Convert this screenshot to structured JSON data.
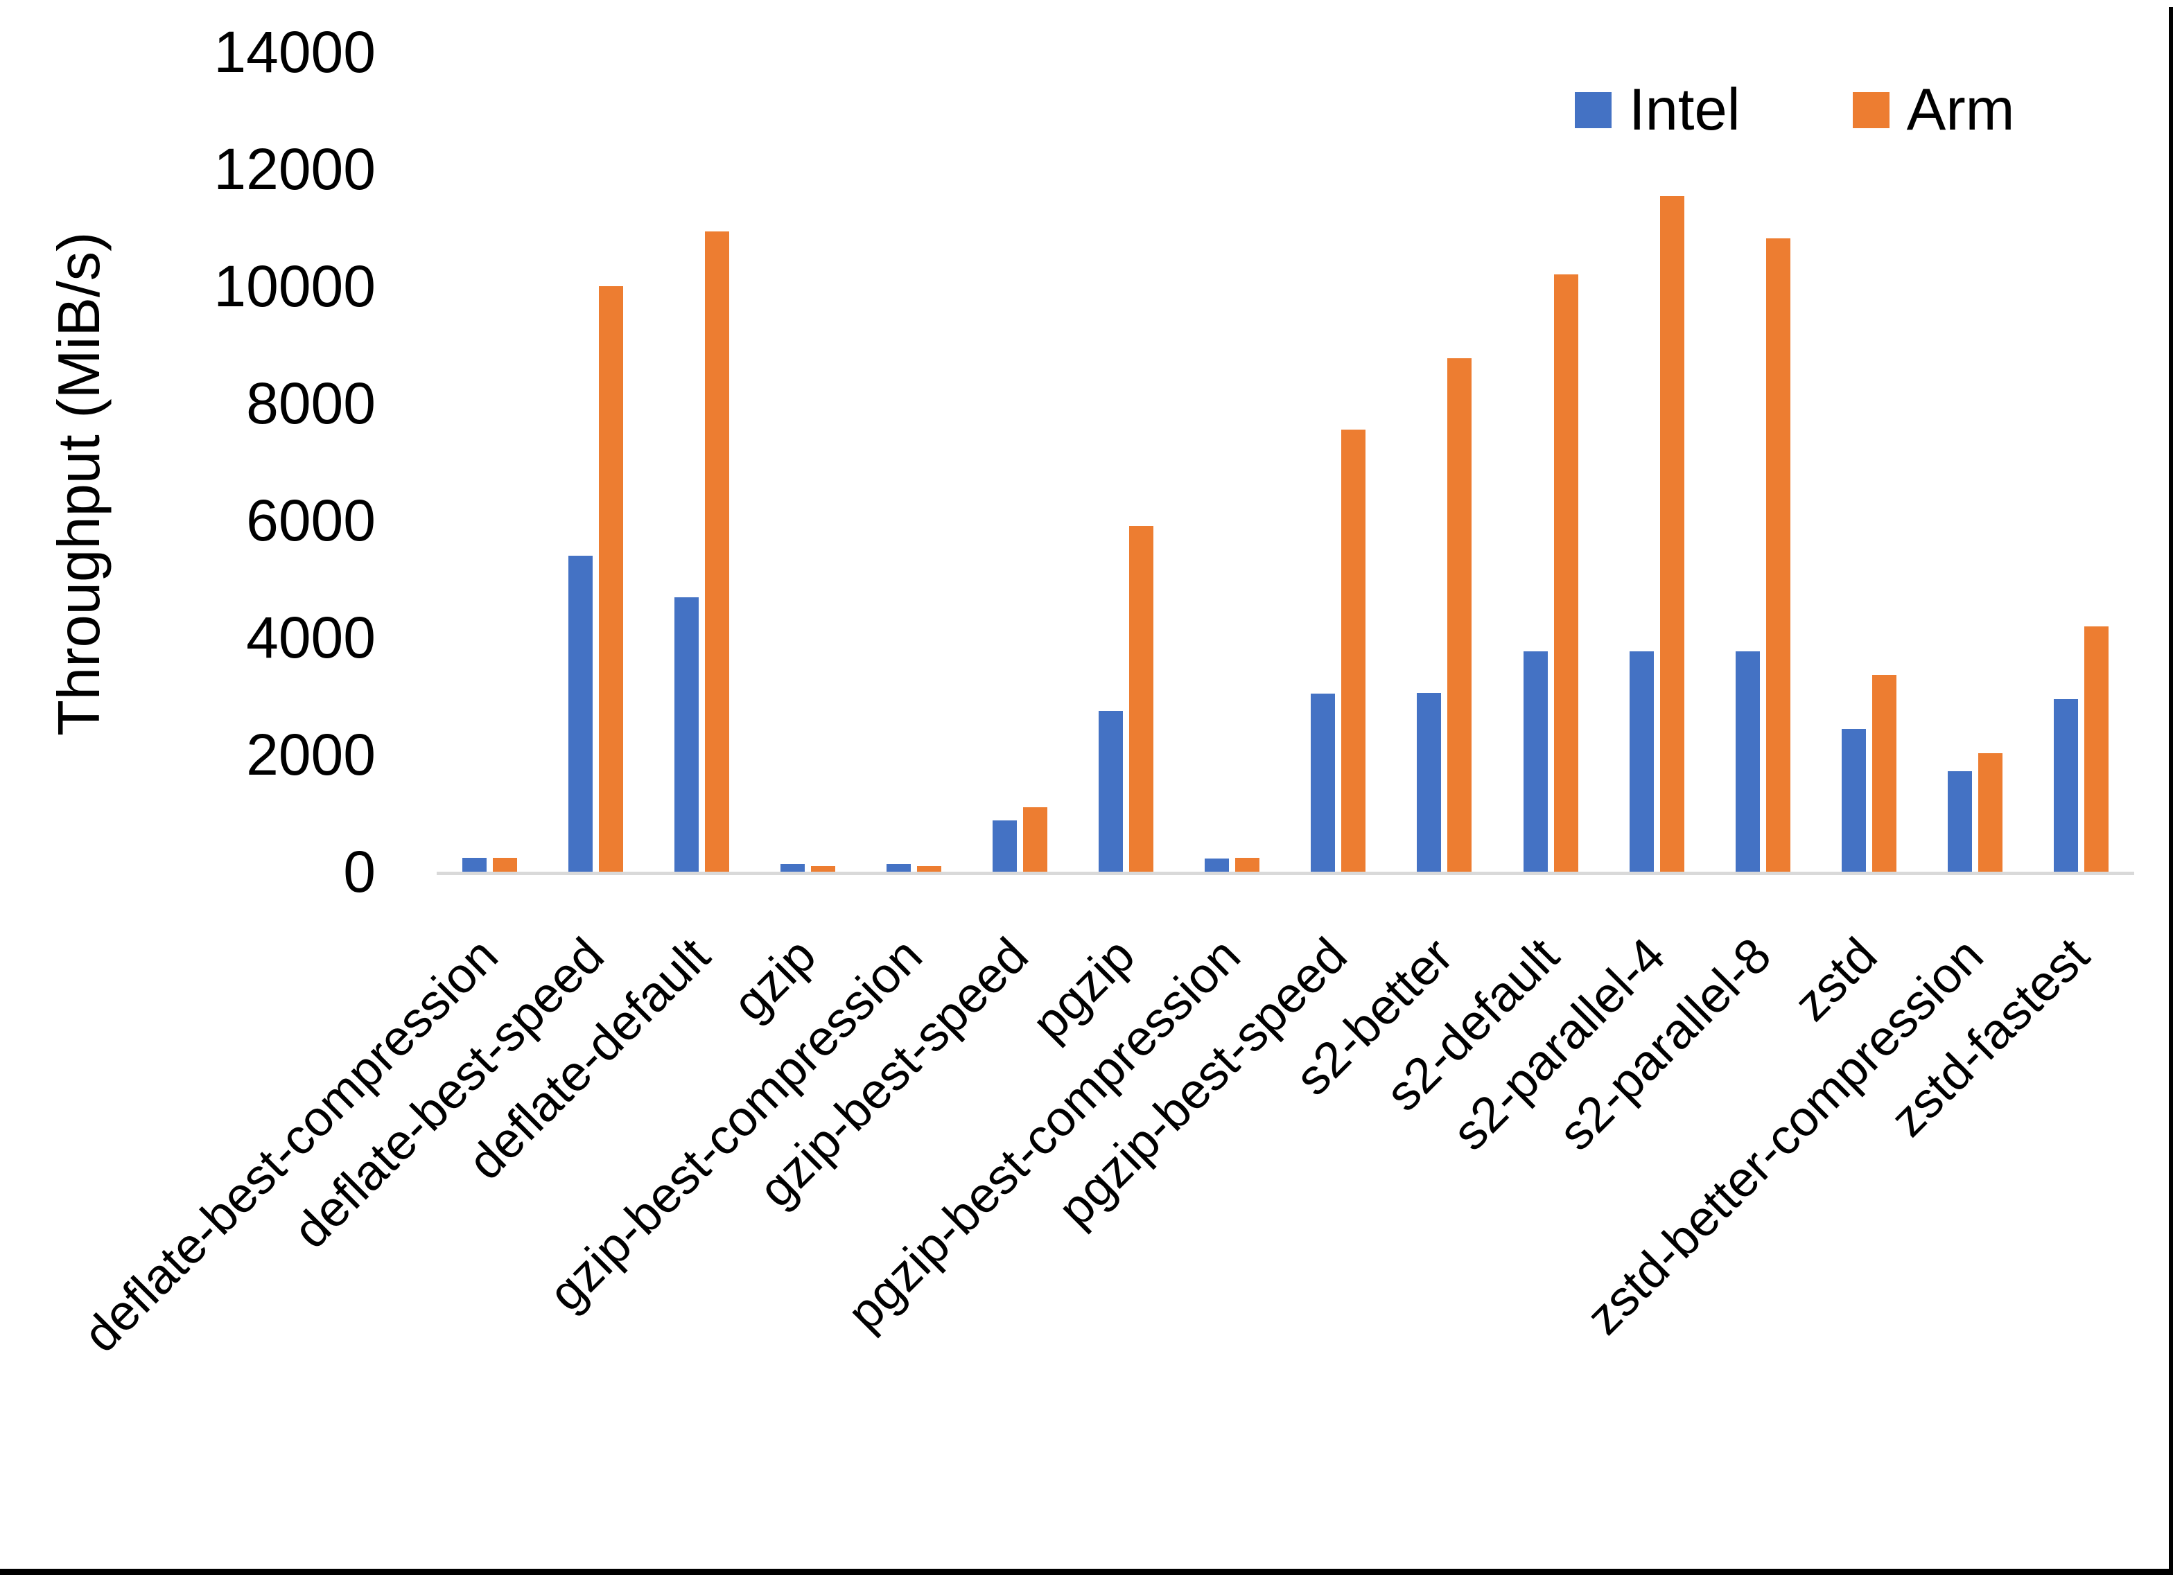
{
  "chart_data": {
    "type": "bar",
    "title": "",
    "xlabel": "",
    "ylabel": "Throughput (MiB/s)",
    "ylim": [
      0,
      14000
    ],
    "ytick_step": 2000,
    "grid": "off",
    "legend_position": "top-right",
    "axis_line_color": "#D9D9D9",
    "categories": [
      "deflate-best-compression",
      "deflate-best-speed",
      "deflate-default",
      "gzip",
      "gzip-best-compression",
      "gzip-best-speed",
      "pgzip",
      "pgzip-best-compression",
      "pgzip-best-speed",
      "s2-better",
      "s2-default",
      "s2-parallel-4",
      "s2-parallel-8",
      "zstd",
      "zstd-better-compression",
      "zstd-fastest"
    ],
    "series": [
      {
        "name": "Intel",
        "color": "#4472C4",
        "values": [
          240,
          5400,
          4690,
          130,
          130,
          880,
          2750,
          230,
          3040,
          3050,
          3760,
          3760,
          3760,
          2440,
          1720,
          2950
        ]
      },
      {
        "name": "Arm",
        "color": "#ED7D31",
        "values": [
          240,
          10000,
          10930,
          90,
          100,
          1100,
          5900,
          235,
          7550,
          8770,
          10200,
          11540,
          10820,
          3360,
          2020,
          4190
        ]
      }
    ]
  },
  "page": {
    "background": "#FFFFFF",
    "border_color": "#000000"
  }
}
